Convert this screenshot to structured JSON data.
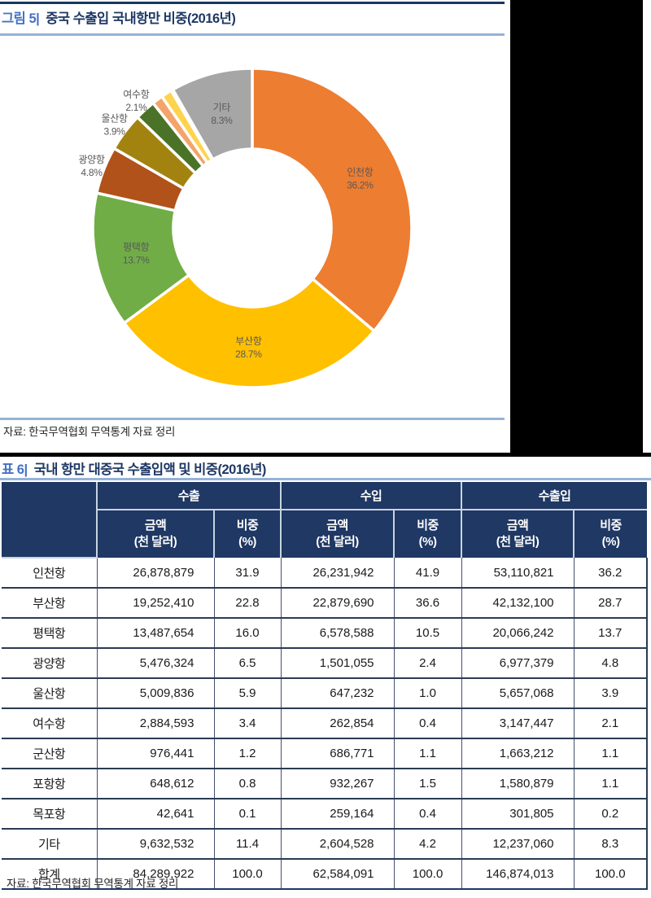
{
  "figure": {
    "caption_prefix": "그림 5|",
    "caption_title": "중국 수출입 국내항만 비중(2016년)",
    "source": "자료: 한국무역협회 무역통계 자료 정리"
  },
  "chart_data": {
    "type": "pie",
    "subtype": "donut",
    "title": "중국 수출입 국내항만 비중(2016년)",
    "unit": "%",
    "direction": "clockwise",
    "start_angle": "12-oclock",
    "label_color": "#595959",
    "slices": [
      {
        "name": "인천항",
        "value": 36.2,
        "color": "#ED7D31",
        "label": "inside"
      },
      {
        "name": "부산항",
        "value": 28.7,
        "color": "#FFC000",
        "label": "inside"
      },
      {
        "name": "평택항",
        "value": 13.7,
        "color": "#70AD47",
        "label": "inside"
      },
      {
        "name": "광양항",
        "value": 4.8,
        "color": "#B0521A",
        "label": "outside"
      },
      {
        "name": "울산항",
        "value": 3.9,
        "color": "#A3830F",
        "label": "outside"
      },
      {
        "name": "여수항",
        "value": 2.1,
        "color": "#4A7328",
        "label": "outside"
      },
      {
        "name": "군산항",
        "value": 1.1,
        "color": "#F4A469",
        "label": "none"
      },
      {
        "name": "포항항",
        "value": 1.1,
        "color": "#FFD34D",
        "label": "none"
      },
      {
        "name": "목포항",
        "value": 0.2,
        "color": "#EDE8CF",
        "label": "none"
      },
      {
        "name": "기타",
        "value": 8.3,
        "color": "#A6A6A6",
        "label": "inside"
      }
    ]
  },
  "table": {
    "caption_prefix": "표 6|",
    "caption_title": "국내 항만 대중국 수출입액 및 비중(2016년)",
    "groups": [
      "수출",
      "수입",
      "수출입"
    ],
    "subheaders": {
      "amount": "금액\n(천 달러)",
      "share": "비중\n(%)"
    },
    "rows": [
      [
        "인천항",
        "26,878,879",
        "31.9",
        "26,231,942",
        "41.9",
        "53,110,821",
        "36.2"
      ],
      [
        "부산항",
        "19,252,410",
        "22.8",
        "22,879,690",
        "36.6",
        "42,132,100",
        "28.7"
      ],
      [
        "평택항",
        "13,487,654",
        "16.0",
        "6,578,588",
        "10.5",
        "20,066,242",
        "13.7"
      ],
      [
        "광양항",
        "5,476,324",
        "6.5",
        "1,501,055",
        "2.4",
        "6,977,379",
        "4.8"
      ],
      [
        "울산항",
        "5,009,836",
        "5.9",
        "647,232",
        "1.0",
        "5,657,068",
        "3.9"
      ],
      [
        "여수항",
        "2,884,593",
        "3.4",
        "262,854",
        "0.4",
        "3,147,447",
        "2.1"
      ],
      [
        "군산항",
        "976,441",
        "1.2",
        "686,771",
        "1.1",
        "1,663,212",
        "1.1"
      ],
      [
        "포항항",
        "648,612",
        "0.8",
        "932,267",
        "1.5",
        "1,580,879",
        "1.1"
      ],
      [
        "목포항",
        "42,641",
        "0.1",
        "259,164",
        "0.4",
        "301,805",
        "0.2"
      ],
      [
        "기타",
        "9,632,532",
        "11.4",
        "2,604,528",
        "4.2",
        "12,237,060",
        "8.3"
      ],
      [
        "합계",
        "84,289,922",
        "100.0",
        "62,584,091",
        "100.0",
        "146,874,013",
        "100.0"
      ]
    ],
    "source": "자료: 한국무역협회 무역통계 자료 정리"
  },
  "colors": {
    "caption_prefix_blue": "#4472C4",
    "caption_title_navy": "#1F3864",
    "light_blue_rule": "#95B3D7",
    "dark_rule": "#17375E",
    "table_header_bg": "#1F3864",
    "redaction_black": "#000000"
  }
}
